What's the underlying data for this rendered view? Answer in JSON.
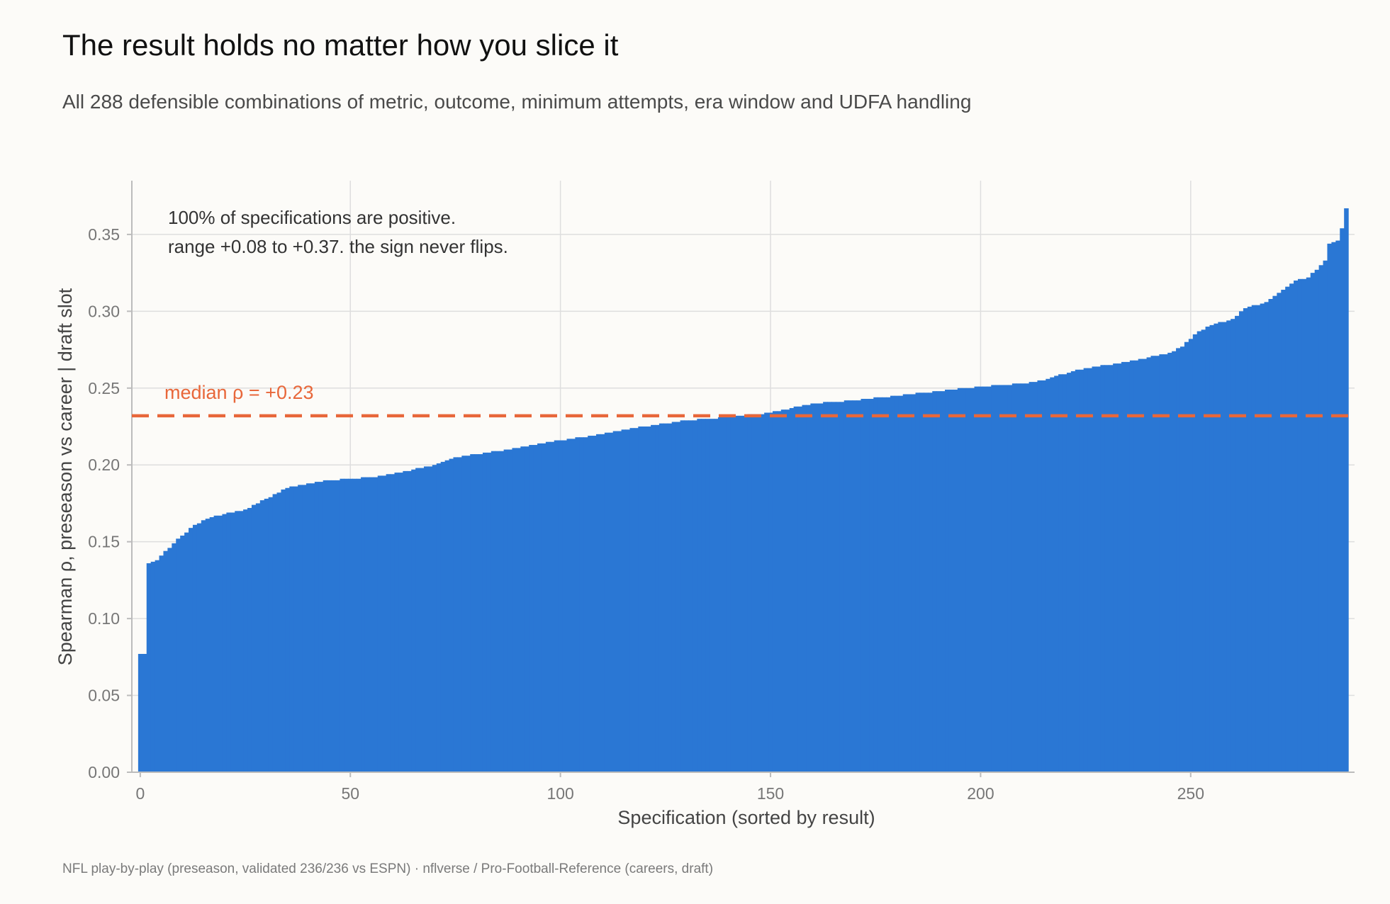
{
  "title": "The result holds no matter how you slice it",
  "subtitle": "All 288 defensible combinations of metric, outcome, minimum attempts, era window and UDFA handling",
  "source": "NFL play-by-play (preseason, validated 236/236 vs ESPN)  ·  nflverse / Pro-Football-Reference (careers, draft)",
  "colors": {
    "bar": "#2a77d4",
    "median": "#e8673a",
    "grid": "#dedede",
    "axis": "#bcbcbc"
  },
  "chart_data": {
    "type": "bar",
    "title": "The result holds no matter how you slice it",
    "xlabel": "Specification (sorted by result)",
    "ylabel": "Spearman ρ, preseason vs career | draft slot",
    "xlim": [
      -2,
      289
    ],
    "ylim": [
      0,
      0.385
    ],
    "xticks": [
      0,
      50,
      100,
      150,
      200,
      250
    ],
    "yticks": [
      0.0,
      0.05,
      0.1,
      0.15,
      0.2,
      0.25,
      0.3,
      0.35
    ],
    "ytick_labels": [
      "0.00",
      "0.05",
      "0.10",
      "0.15",
      "0.20",
      "0.25",
      "0.30",
      "0.35"
    ],
    "grid": true,
    "n_specifications": 288,
    "median": 0.232,
    "median_label": "median ρ = +0.23",
    "annotation_lines": [
      "100% of specifications are positive.",
      "range +0.08 to +0.37. the sign never flips."
    ],
    "curve_knots": [
      [
        0,
        0.077
      ],
      [
        1,
        0.077
      ],
      [
        2,
        0.136
      ],
      [
        4,
        0.138
      ],
      [
        8,
        0.149
      ],
      [
        10,
        0.154
      ],
      [
        13,
        0.161
      ],
      [
        17,
        0.166
      ],
      [
        20,
        0.168
      ],
      [
        25,
        0.171
      ],
      [
        30,
        0.178
      ],
      [
        35,
        0.185
      ],
      [
        40,
        0.188
      ],
      [
        45,
        0.19
      ],
      [
        50,
        0.191
      ],
      [
        55,
        0.192
      ],
      [
        60,
        0.194
      ],
      [
        65,
        0.197
      ],
      [
        70,
        0.2
      ],
      [
        75,
        0.205
      ],
      [
        80,
        0.207
      ],
      [
        90,
        0.211
      ],
      [
        100,
        0.216
      ],
      [
        110,
        0.22
      ],
      [
        120,
        0.225
      ],
      [
        130,
        0.229
      ],
      [
        140,
        0.231
      ],
      [
        150,
        0.234
      ],
      [
        160,
        0.24
      ],
      [
        170,
        0.242
      ],
      [
        180,
        0.245
      ],
      [
        190,
        0.248
      ],
      [
        200,
        0.251
      ],
      [
        210,
        0.253
      ],
      [
        215,
        0.255
      ],
      [
        218,
        0.258
      ],
      [
        225,
        0.263
      ],
      [
        235,
        0.267
      ],
      [
        240,
        0.27
      ],
      [
        245,
        0.273
      ],
      [
        248,
        0.277
      ],
      [
        252,
        0.287
      ],
      [
        255,
        0.291
      ],
      [
        260,
        0.295
      ],
      [
        263,
        0.302
      ],
      [
        268,
        0.306
      ],
      [
        270,
        0.31
      ],
      [
        275,
        0.32
      ],
      [
        278,
        0.322
      ],
      [
        280,
        0.327
      ],
      [
        282,
        0.333
      ],
      [
        283,
        0.344
      ],
      [
        285,
        0.346
      ],
      [
        286,
        0.354
      ],
      [
        287,
        0.367
      ]
    ]
  }
}
